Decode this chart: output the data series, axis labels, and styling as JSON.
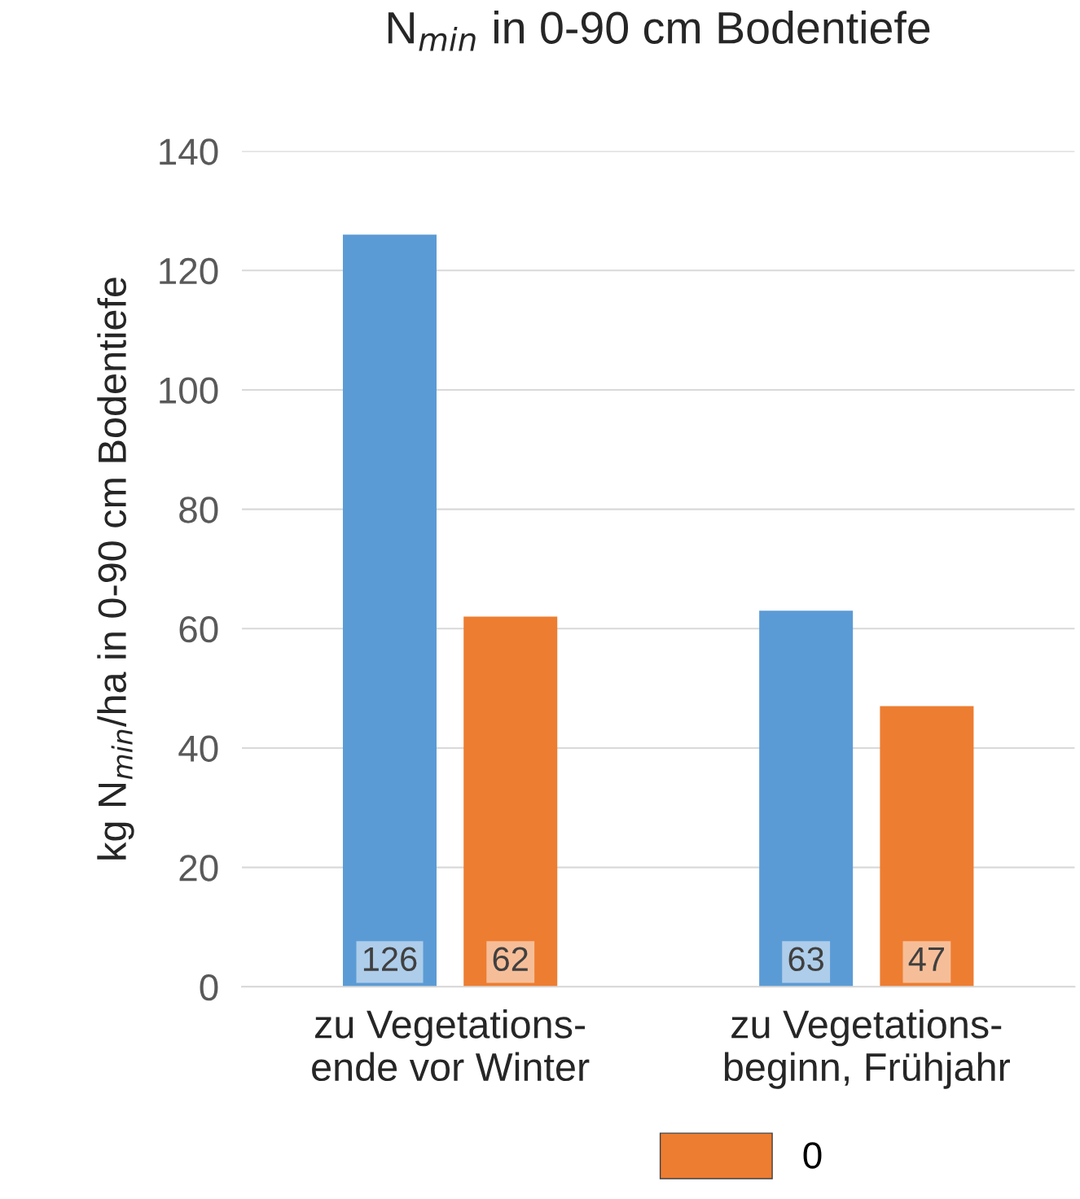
{
  "chart_data": {
    "type": "bar",
    "title": "N$_{min}$ in 0-90 cm Bodentiefe",
    "ylabel": "kg N$_{min}$/ha in 0-90 cm Bodentiefe",
    "categories": [
      "zu Vegetations-\nende vor Winter",
      "zu Vegetations-\nbeginn, Frühjahr"
    ],
    "series": [
      {
        "color": "#5b9bd5",
        "values": [
          126,
          63
        ]
      },
      {
        "name": "0",
        "color": "#ed7d31",
        "values": [
          62,
          47
        ]
      }
    ],
    "ylim": [
      0,
      140
    ],
    "yticks": [
      0,
      20,
      40,
      60,
      80,
      100,
      120,
      140
    ],
    "grid": "y",
    "legend": "bottom",
    "data_labels": true
  }
}
